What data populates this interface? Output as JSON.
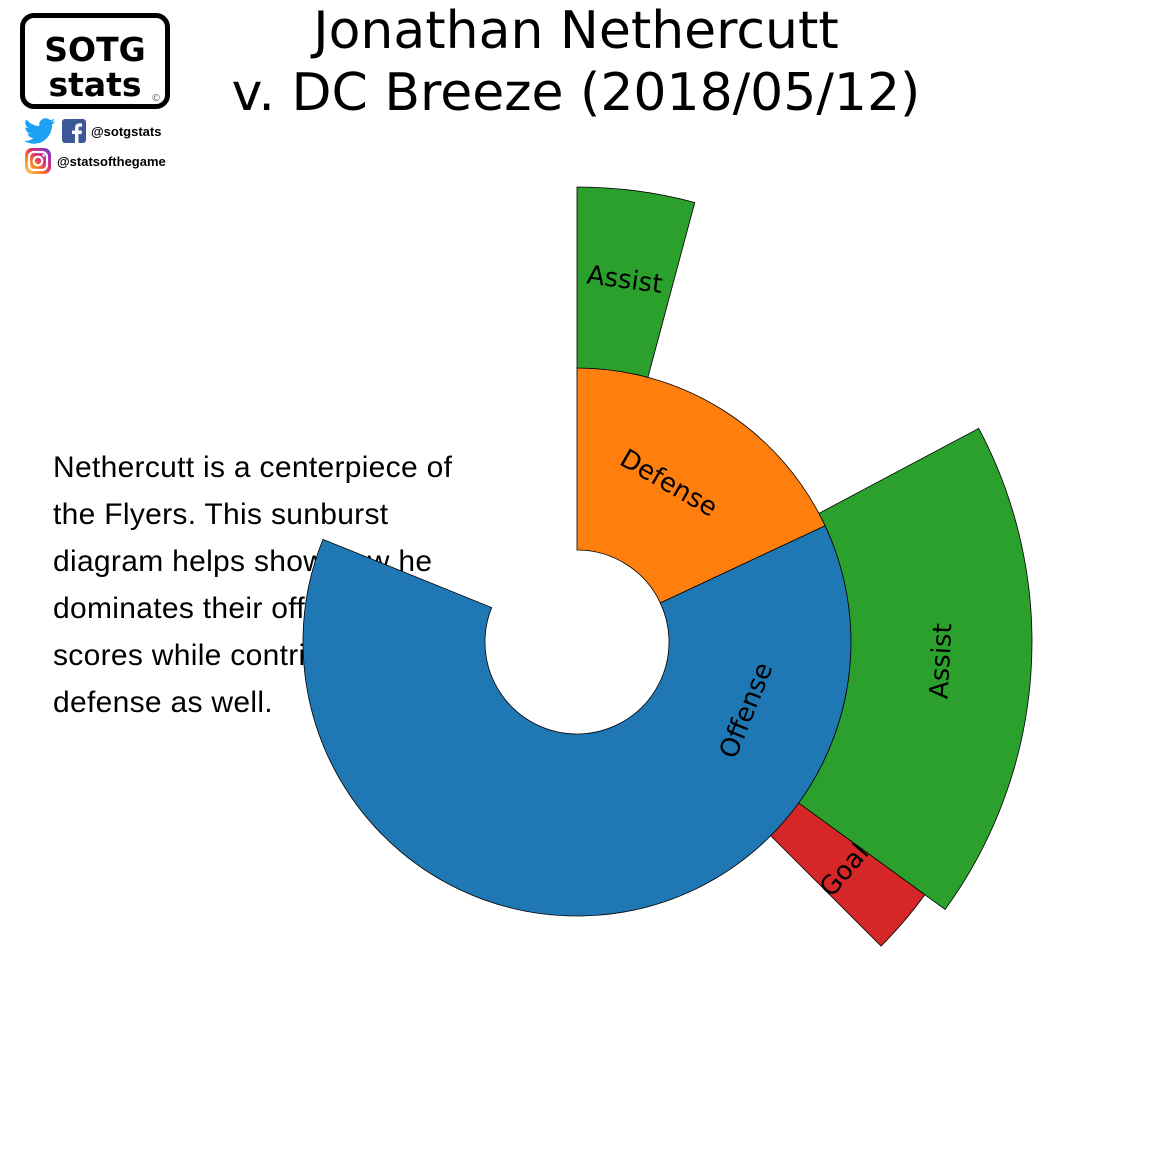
{
  "title": {
    "line1": "Jonathan Nethercutt",
    "line2": "v. DC Breeze (2018/05/12)"
  },
  "logo": {
    "line1": "SOTG",
    "line2": "stats",
    "copyright": "©"
  },
  "social": {
    "twitter_facebook_handle": "@sotgstats",
    "instagram_handle": "@statsofthegame",
    "icons": [
      "twitter-icon",
      "facebook-icon",
      "instagram-icon"
    ]
  },
  "caption": "Nethercutt is a centerpiece of the Flyers. This sunburst diagram helps show how he dominates their offensive scores while contributing on defense as well.",
  "chart_data": {
    "type": "sunburst",
    "inner_ring": [
      {
        "label": "Offense",
        "value": 7,
        "color": "#1f77b4"
      },
      {
        "label": "Defense",
        "value": 2,
        "color": "#ff7f0e"
      }
    ],
    "outer_ring": [
      {
        "parent": "Offense",
        "label": "Assist",
        "value": 6,
        "color": "#2ca02c"
      },
      {
        "parent": "Offense",
        "label": "Goal",
        "value": 1,
        "color": "#d62728"
      },
      {
        "parent": "Defense",
        "label": "Assist",
        "value": 1,
        "color": "#2ca02c"
      }
    ]
  }
}
